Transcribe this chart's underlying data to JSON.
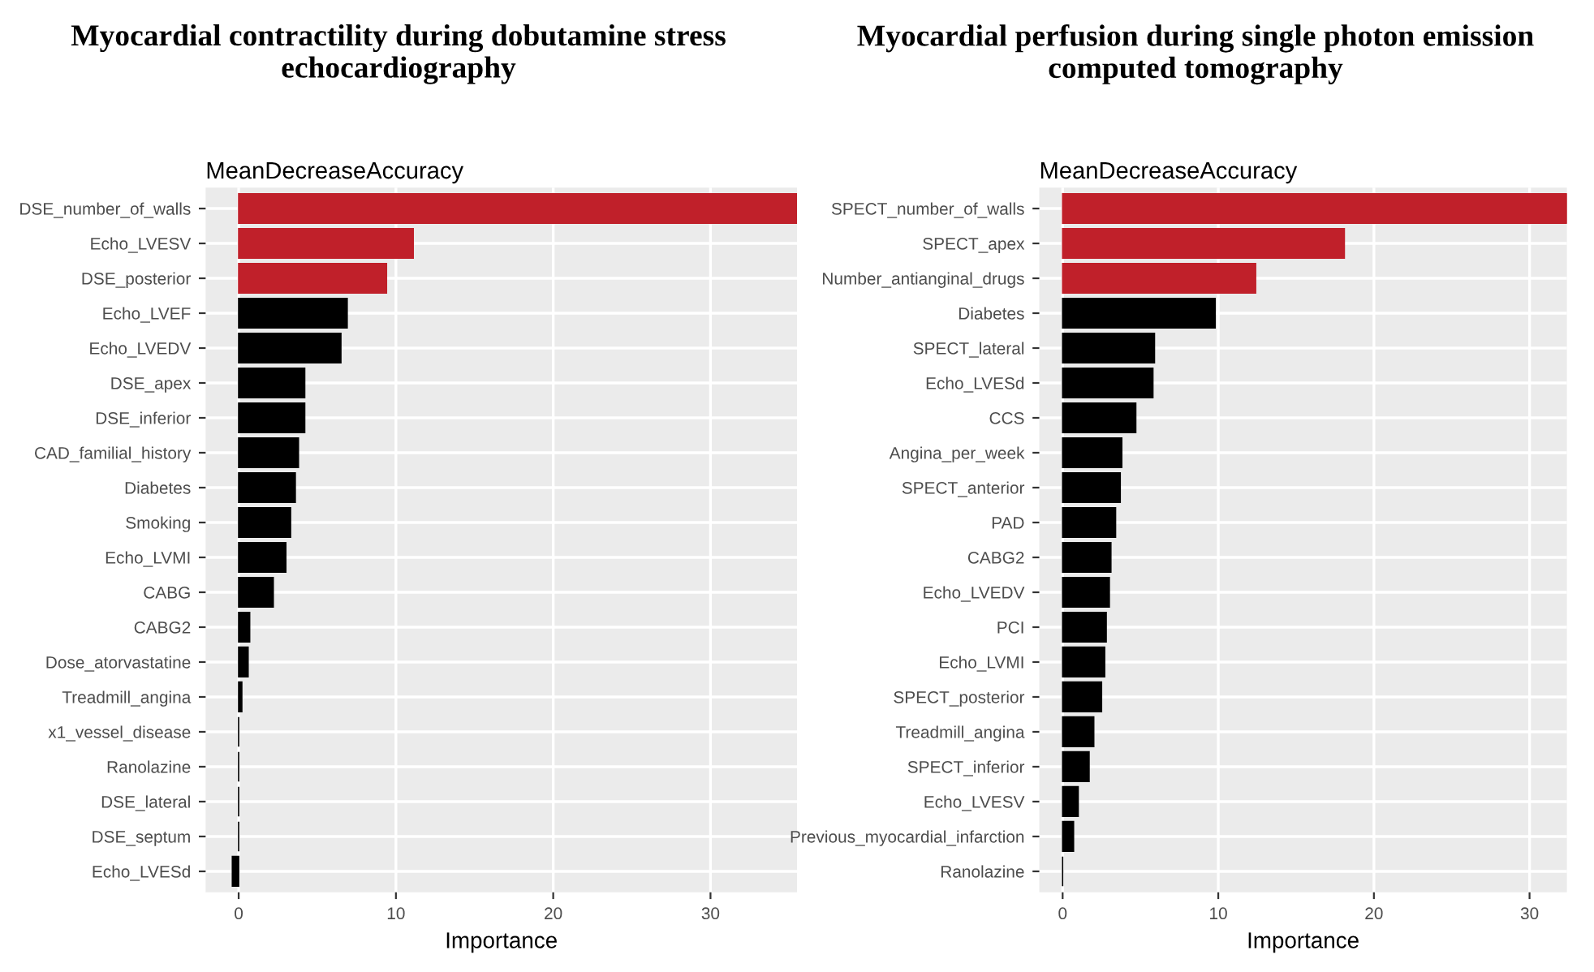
{
  "chart_data": [
    {
      "type": "bar",
      "orientation": "horizontal",
      "title": "Myocardial contractility during dobutamine stress echocardiography",
      "subtitle": "MeanDecreaseAccuracy",
      "xlabel": "Importance",
      "grid": true,
      "categories": [
        "DSE_number_of_walls",
        "Echo_LVESV",
        "DSE_posterior",
        "Echo_LVEF",
        "Echo_LVEDV",
        "DSE_apex",
        "DSE_inferior",
        "CAD_familial_history",
        "Diabetes",
        "Smoking",
        "Echo_LVMI",
        "CABG",
        "CABG2",
        "Dose_atorvastatine",
        "Treadmill_angina",
        "x1_vessel_disease",
        "Ranolazine",
        "DSE_lateral",
        "DSE_septum",
        "Echo_LVESd"
      ],
      "values": [
        35.5,
        11.1,
        9.4,
        6.9,
        6.5,
        4.2,
        4.2,
        3.8,
        3.6,
        3.3,
        3.0,
        2.2,
        0.7,
        0.6,
        0.2,
        0,
        0,
        0,
        0,
        -0.4
      ],
      "colors": [
        "#c0202a",
        "#c0202a",
        "#c0202a",
        "#000000",
        "#000000",
        "#000000",
        "#000000",
        "#000000",
        "#000000",
        "#000000",
        "#000000",
        "#000000",
        "#000000",
        "#000000",
        "#000000",
        "#000000",
        "#000000",
        "#000000",
        "#000000",
        "#000000"
      ],
      "xlim": [
        -2.1,
        35.5
      ],
      "xticks": [
        0,
        10,
        20,
        30
      ]
    },
    {
      "type": "bar",
      "orientation": "horizontal",
      "title": "Myocardial perfusion during single photon emission computed tomography",
      "subtitle": "MeanDecreaseAccuracy",
      "xlabel": "Importance",
      "grid": true,
      "categories": [
        "SPECT_number_of_walls",
        "SPECT_apex",
        "Number_antianginal_drugs",
        "Diabetes",
        "SPECT_lateral",
        "Echo_LVESd",
        "CCS",
        "Angina_per_week",
        "SPECT_anterior",
        "PAD",
        "CABG2",
        "Echo_LVEDV",
        "PCI",
        "Echo_LVMI",
        "SPECT_posterior",
        "Treadmill_angina",
        "SPECT_inferior",
        "Echo_LVESV",
        "Previous_myocardial_infarction",
        "Ranolazine"
      ],
      "values": [
        32.4,
        18.1,
        12.4,
        9.8,
        5.9,
        5.8,
        4.7,
        3.8,
        3.7,
        3.4,
        3.1,
        3.0,
        2.8,
        2.7,
        2.5,
        2.0,
        1.7,
        1.0,
        0.7,
        0
      ],
      "colors": [
        "#c0202a",
        "#c0202a",
        "#c0202a",
        "#000000",
        "#000000",
        "#000000",
        "#000000",
        "#000000",
        "#000000",
        "#000000",
        "#000000",
        "#000000",
        "#000000",
        "#000000",
        "#000000",
        "#000000",
        "#000000",
        "#000000",
        "#000000",
        "#000000"
      ],
      "xlim": [
        -1.5,
        32.4
      ],
      "xticks": [
        0,
        10,
        20,
        30
      ]
    }
  ]
}
